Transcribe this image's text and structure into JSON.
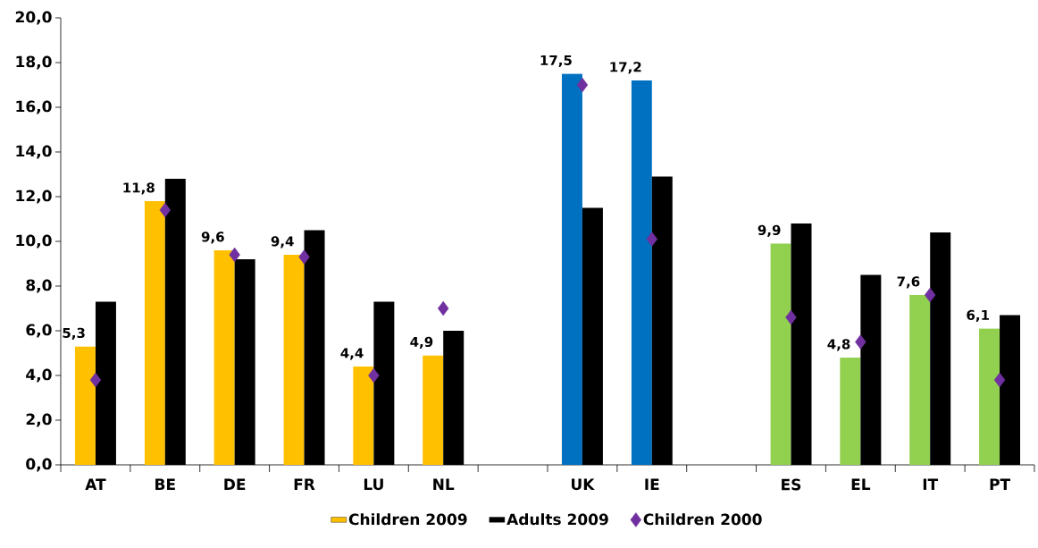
{
  "chart_data": {
    "type": "bar",
    "categories": [
      "AT",
      "BE",
      "DE",
      "FR",
      "LU",
      "NL",
      null,
      "UK",
      "IE",
      null,
      "ES",
      "EL",
      "IT",
      "PT"
    ],
    "series": [
      {
        "name": "Children 2009",
        "colors": [
          "#ffc000",
          "#ffc000",
          "#ffc000",
          "#ffc000",
          "#ffc000",
          "#ffc000",
          "#ffc000",
          "#0070c0",
          "#0070c0",
          "#92d050",
          "#92d050",
          "#92d050",
          "#92d050",
          "#92d050"
        ],
        "values": [
          5.3,
          11.8,
          9.6,
          9.4,
          4.4,
          4.9,
          null,
          17.5,
          17.2,
          null,
          9.9,
          4.8,
          7.6,
          6.1
        ],
        "value_labels": [
          "5,3",
          "11,8",
          "9,6",
          "9,4",
          "4,4",
          "4,9",
          null,
          "17,5",
          "17,2",
          null,
          "9,9",
          "4,8",
          "7,6",
          "6,1"
        ]
      },
      {
        "name": "Adults  2009",
        "color": "#000000",
        "values": [
          7.3,
          12.8,
          9.2,
          10.5,
          7.3,
          6.0,
          null,
          11.5,
          12.9,
          null,
          10.8,
          8.5,
          10.4,
          6.7
        ]
      },
      {
        "name": "Children 2000",
        "type": "scatter",
        "marker": "diamond",
        "color": "#7030a0",
        "values": [
          3.8,
          11.4,
          9.4,
          9.3,
          4.0,
          7.0,
          null,
          17.0,
          10.1,
          null,
          6.6,
          5.5,
          7.6,
          3.8
        ]
      }
    ],
    "ylim": [
      0,
      20
    ],
    "yticks": [
      {
        "value": 0,
        "label": "0,0"
      },
      {
        "value": 2,
        "label": "2,0"
      },
      {
        "value": 4,
        "label": "4,0"
      },
      {
        "value": 6,
        "label": "6,0"
      },
      {
        "value": 8,
        "label": "8,0"
      },
      {
        "value": 10,
        "label": "10,0"
      },
      {
        "value": 12,
        "label": "12,0"
      },
      {
        "value": 14,
        "label": "14,0"
      },
      {
        "value": 16,
        "label": "16,0"
      },
      {
        "value": 18,
        "label": "18,0"
      },
      {
        "value": 20,
        "label": "20,0"
      }
    ],
    "legend": "bottom"
  }
}
